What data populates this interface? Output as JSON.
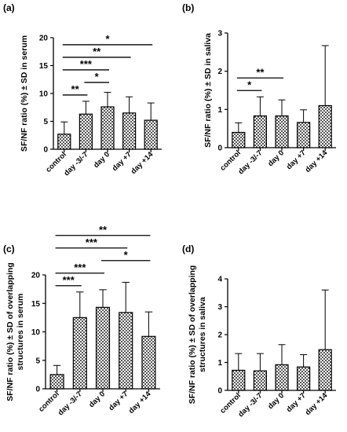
{
  "colors": {
    "bar_fill": "#9a9a9a",
    "bar_stroke": "#000000",
    "axis": "#000000"
  },
  "bar_pattern": "checkerboard",
  "chart_data": [
    {
      "type": "bar",
      "panel": "(a)",
      "ylabel": "SF/NF ratio (%) ± SD in serum",
      "categories": [
        "control",
        "day -3/-7",
        "day 0",
        "day +7",
        "day +14"
      ],
      "values": [
        2.7,
        6.3,
        7.6,
        6.5,
        5.2
      ],
      "error": [
        2.2,
        2.3,
        2.6,
        2.9,
        3.1
      ],
      "ylim": [
        0,
        20
      ],
      "yticks": [
        0,
        5,
        10,
        15,
        20
      ],
      "significance": [
        {
          "from": 0,
          "to": 1,
          "label": "**"
        },
        {
          "from": 1,
          "to": 2,
          "label": "*"
        },
        {
          "from": 0,
          "to": 2,
          "label": "***"
        },
        {
          "from": 0,
          "to": 3,
          "label": "**"
        },
        {
          "from": 0,
          "to": 4,
          "label": "*"
        }
      ]
    },
    {
      "type": "bar",
      "panel": "(b)",
      "ylabel": "SF/NF ratio (%) ± SD in saliva",
      "categories": [
        "control",
        "day -3/-7",
        "day 0",
        "day +7",
        "day +14"
      ],
      "values": [
        0.4,
        0.83,
        0.83,
        0.66,
        1.1
      ],
      "error": [
        0.25,
        0.5,
        0.42,
        0.33,
        1.57
      ],
      "ylim": [
        0,
        3
      ],
      "yticks": [
        0,
        1,
        2,
        3
      ],
      "significance": [
        {
          "from": 0,
          "to": 1,
          "label": "*"
        },
        {
          "from": 0,
          "to": 2,
          "label": "**"
        }
      ]
    },
    {
      "type": "bar",
      "panel": "(c)",
      "ylabel": [
        "SF/NF ratio (%) ± SD of overlapping",
        "structures in serum"
      ],
      "categories": [
        "control",
        "day -3/-7",
        "day 0",
        "day +7",
        "day +14"
      ],
      "values": [
        2.5,
        12.5,
        14.3,
        13.4,
        9.2
      ],
      "error": [
        1.6,
        4.5,
        3.1,
        5.3,
        4.3
      ],
      "ylim": [
        0,
        20
      ],
      "yticks": [
        0,
        5,
        10,
        15,
        20
      ],
      "significance": [
        {
          "from": 0,
          "to": 1,
          "label": "***"
        },
        {
          "from": 0,
          "to": 2,
          "label": "***"
        },
        {
          "from": 0,
          "to": 3,
          "label": "***"
        },
        {
          "from": 0,
          "to": 4,
          "label": "**"
        },
        {
          "from": 2,
          "to": 4,
          "label": "*"
        }
      ]
    },
    {
      "type": "bar",
      "panel": "(d)",
      "ylabel": [
        "SF/NF ratio (%) ± SD of overlapping",
        "structures in saliva"
      ],
      "categories": [
        "control",
        "day -3/-7",
        "day 0",
        "day +7",
        "day +14"
      ],
      "values": [
        0.72,
        0.7,
        0.92,
        0.84,
        1.46
      ],
      "error": [
        0.6,
        0.62,
        0.72,
        0.44,
        2.14
      ],
      "ylim": [
        0,
        4
      ],
      "yticks": [
        0,
        1,
        2,
        3,
        4
      ],
      "significance": []
    }
  ]
}
